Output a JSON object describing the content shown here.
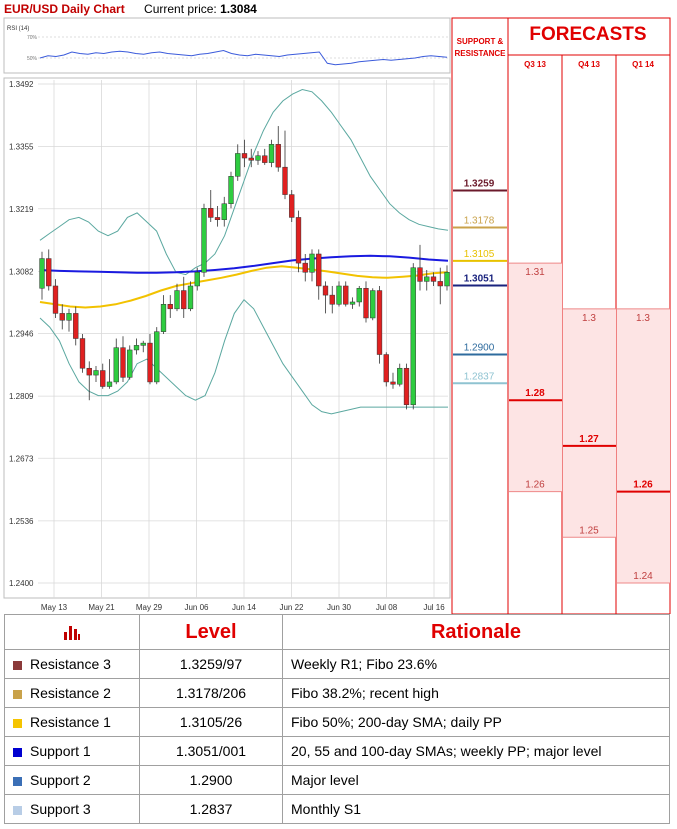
{
  "header": {
    "title": "EUR/USD Daily Chart",
    "price_label": "Current price:",
    "price_value": "1.3084"
  },
  "rsi": {
    "label": "RSI (14)",
    "upper": "70%",
    "lower": "50%"
  },
  "chart_data": {
    "type": "candlestick",
    "y_axis_ticks": [
      "1.3492",
      "1.3355",
      "1.3219",
      "1.3082",
      "1.2946",
      "1.2809",
      "1.2673",
      "1.2536",
      "1.2400"
    ],
    "ylim": [
      1.24,
      1.3492
    ],
    "x_axis_ticks": [
      "May 13",
      "May 21",
      "May 29",
      "Jun 06",
      "Jun 14",
      "Jun 22",
      "Jun 30",
      "Jul 08",
      "Jul 16"
    ],
    "candles": [
      [
        1.3045,
        1.3125,
        1.302,
        1.311
      ],
      [
        1.311,
        1.313,
        1.304,
        1.305
      ],
      [
        1.305,
        1.3065,
        1.298,
        1.299
      ],
      [
        1.299,
        1.301,
        1.2955,
        1.2975
      ],
      [
        1.2975,
        1.3,
        1.295,
        1.299
      ],
      [
        1.299,
        1.3005,
        1.292,
        1.2935
      ],
      [
        1.2935,
        1.2945,
        1.286,
        1.287
      ],
      [
        1.287,
        1.2885,
        1.28,
        1.2855
      ],
      [
        1.2855,
        1.2875,
        1.284,
        1.2865
      ],
      [
        1.2865,
        1.288,
        1.2825,
        1.283
      ],
      [
        1.283,
        1.289,
        1.2825,
        1.284
      ],
      [
        1.284,
        1.2935,
        1.2835,
        1.2915
      ],
      [
        1.2915,
        1.294,
        1.284,
        1.285
      ],
      [
        1.285,
        1.292,
        1.2845,
        1.291
      ],
      [
        1.291,
        1.2935,
        1.29,
        1.292
      ],
      [
        1.292,
        1.293,
        1.2905,
        1.2925
      ],
      [
        1.2925,
        1.2945,
        1.2835,
        1.284
      ],
      [
        1.284,
        1.296,
        1.2835,
        1.295
      ],
      [
        1.295,
        1.303,
        1.2945,
        1.301
      ],
      [
        1.301,
        1.303,
        1.298,
        1.3
      ],
      [
        1.3,
        1.3055,
        1.2995,
        1.304
      ],
      [
        1.304,
        1.307,
        1.298,
        1.3
      ],
      [
        1.3,
        1.306,
        1.2995,
        1.305
      ],
      [
        1.305,
        1.309,
        1.304,
        1.308
      ],
      [
        1.308,
        1.323,
        1.307,
        1.322
      ],
      [
        1.322,
        1.326,
        1.319,
        1.32
      ],
      [
        1.32,
        1.3225,
        1.318,
        1.3195
      ],
      [
        1.3195,
        1.3245,
        1.318,
        1.323
      ],
      [
        1.323,
        1.33,
        1.322,
        1.329
      ],
      [
        1.329,
        1.336,
        1.328,
        1.334
      ],
      [
        1.334,
        1.337,
        1.331,
        1.333
      ],
      [
        1.333,
        1.335,
        1.331,
        1.3325
      ],
      [
        1.3325,
        1.3345,
        1.3315,
        1.3335
      ],
      [
        1.3335,
        1.335,
        1.3315,
        1.332
      ],
      [
        1.332,
        1.337,
        1.331,
        1.336
      ],
      [
        1.336,
        1.34,
        1.33,
        1.331
      ],
      [
        1.331,
        1.339,
        1.324,
        1.325
      ],
      [
        1.325,
        1.326,
        1.319,
        1.32
      ],
      [
        1.32,
        1.3215,
        1.308,
        1.31
      ],
      [
        1.31,
        1.312,
        1.306,
        1.308
      ],
      [
        1.308,
        1.313,
        1.306,
        1.312
      ],
      [
        1.312,
        1.313,
        1.302,
        1.305
      ],
      [
        1.305,
        1.306,
        1.299,
        1.303
      ],
      [
        1.303,
        1.305,
        1.299,
        1.301
      ],
      [
        1.301,
        1.306,
        1.3005,
        1.305
      ],
      [
        1.305,
        1.306,
        1.3005,
        1.301
      ],
      [
        1.301,
        1.3025,
        1.3,
        1.3015
      ],
      [
        1.3015,
        1.305,
        1.3005,
        1.3045
      ],
      [
        1.3045,
        1.306,
        1.297,
        1.298
      ],
      [
        1.298,
        1.3045,
        1.2975,
        1.304
      ],
      [
        1.304,
        1.305,
        1.288,
        1.29
      ],
      [
        1.29,
        1.2905,
        1.283,
        1.284
      ],
      [
        1.284,
        1.286,
        1.2825,
        1.2835
      ],
      [
        1.2835,
        1.288,
        1.283,
        1.287
      ],
      [
        1.287,
        1.288,
        1.278,
        1.279
      ],
      [
        1.279,
        1.31,
        1.278,
        1.309
      ],
      [
        1.309,
        1.314,
        1.304,
        1.306
      ],
      [
        1.306,
        1.3085,
        1.304,
        1.307
      ],
      [
        1.307,
        1.308,
        1.305,
        1.306
      ],
      [
        1.306,
        1.309,
        1.301,
        1.305
      ],
      [
        1.305,
        1.3095,
        1.304,
        1.308
      ]
    ],
    "upper_band": [
      1.315,
      1.3165,
      1.318,
      1.3195,
      1.32,
      1.319,
      1.317,
      1.316,
      1.317,
      1.32,
      1.321,
      1.319,
      1.317,
      1.312,
      1.308,
      1.3075,
      1.309,
      1.31,
      1.312,
      1.316,
      1.322,
      1.328,
      1.334,
      1.339,
      1.343,
      1.3455,
      1.347,
      1.348,
      1.3475,
      1.3455,
      1.343,
      1.34,
      1.337,
      1.333,
      1.329,
      1.326,
      1.323,
      1.321,
      1.3195,
      1.3185,
      1.318,
      1.3175,
      1.3172
    ],
    "lower_band": [
      1.298,
      1.296,
      1.293,
      1.288,
      1.284,
      1.282,
      1.281,
      1.281,
      1.282,
      1.284,
      1.288,
      1.289,
      1.287,
      1.285,
      1.283,
      1.281,
      1.28,
      1.281,
      1.286,
      1.293,
      1.299,
      1.302,
      1.3,
      1.296,
      1.292,
      1.288,
      1.285,
      1.282,
      1.279,
      1.2775,
      1.277,
      1.2775,
      1.278,
      1.2785,
      1.2785,
      1.2785,
      1.2785,
      1.2785,
      1.2785,
      1.2785,
      1.2785,
      1.2785,
      1.2785
    ],
    "ma_blue": [
      1.3085,
      1.3083,
      1.3082,
      1.3081,
      1.308,
      1.3079,
      1.3079,
      1.308,
      1.3082,
      1.3085,
      1.3089,
      1.3094,
      1.31,
      1.3106,
      1.311,
      1.3113,
      1.3115,
      1.3116,
      1.3115,
      1.3112,
      1.3108,
      1.3105
    ],
    "ma_yellow": [
      1.3015,
      1.301,
      1.3005,
      1.3003,
      1.3005,
      1.301,
      1.3018,
      1.3028,
      1.304,
      1.305,
      1.3056,
      1.3062,
      1.3068,
      1.3075,
      1.3083,
      1.309,
      1.3093,
      1.309,
      1.3086,
      1.3082,
      1.3077,
      1.3072,
      1.3069,
      1.3068,
      1.307,
      1.3073,
      1.3078,
      1.308
    ]
  },
  "sr_panel": {
    "title_line1": "SUPPORT &",
    "title_line2": "RESISTANCE",
    "levels": [
      {
        "value": 1.3259,
        "text": "1.3259",
        "color": "#6b1a2b",
        "bold": true
      },
      {
        "value": 1.3178,
        "text": "1.3178",
        "color": "#c9a24a",
        "bold": false
      },
      {
        "value": 1.3105,
        "text": "1.3105",
        "color": "#e8c200",
        "bold": false
      },
      {
        "value": 1.3051,
        "text": "1.3051",
        "color": "#1a237e",
        "bold": true
      },
      {
        "value": 1.29,
        "text": "1.2900",
        "color": "#2e6b9e",
        "bold": false
      },
      {
        "value": 1.2837,
        "text": "1.2837",
        "color": "#8fc3d1",
        "bold": false
      }
    ]
  },
  "forecasts": {
    "title": "FORECASTS",
    "columns": [
      {
        "label": "Q3 13",
        "high": 1.31,
        "high_text": "1.31",
        "mid": 1.28,
        "mid_text": "1.28",
        "low": 1.26,
        "low_text": "1.26"
      },
      {
        "label": "Q4 13",
        "high": 1.3,
        "high_text": "1.3",
        "mid": 1.27,
        "mid_text": "1.27",
        "low": 1.25,
        "low_text": "1.25"
      },
      {
        "label": "Q1 14",
        "high": 1.3,
        "high_text": "1.3",
        "mid": 1.26,
        "mid_text": "1.26",
        "low": 1.24,
        "low_text": "1.24"
      }
    ],
    "accent": "#e00000",
    "fill": "#fde4e4"
  },
  "table": {
    "col_level": "Level",
    "col_rationale": "Rationale",
    "rows": [
      {
        "name": "Resistance 3",
        "level": "1.3259/97",
        "rationale": "Weekly R1; Fibo 23.6%",
        "color": "#8b3a3a"
      },
      {
        "name": "Resistance 2",
        "level": "1.3178/206",
        "rationale": "Fibo 38.2%; recent high",
        "color": "#c9a24a"
      },
      {
        "name": "Resistance 1",
        "level": "1.3105/26",
        "rationale": "Fibo 50%; 200-day SMA; daily PP",
        "color": "#f5c400"
      },
      {
        "name": "Support 1",
        "level": "1.3051/001",
        "rationale": "20, 55 and 100-day SMAs; weekly PP; major level",
        "color": "#0000d0"
      },
      {
        "name": "Support 2",
        "level": "1.2900",
        "rationale": "Major level",
        "color": "#3b6fb6"
      },
      {
        "name": "Support 3",
        "level": "1.2837",
        "rationale": "Monthly S1",
        "color": "#b8cde6"
      }
    ]
  }
}
